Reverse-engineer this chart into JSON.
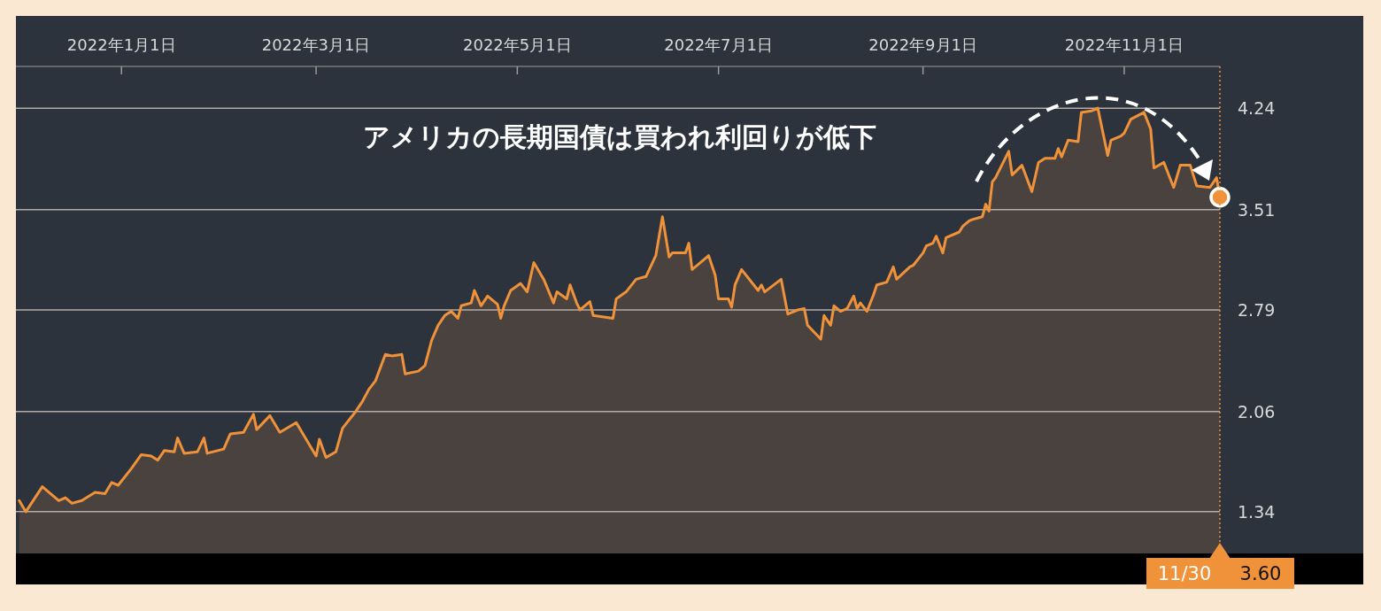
{
  "chart_data": {
    "type": "area",
    "annotations": [
      "アメリカの長期国債は買われ利回りが低下",
      "3.60"
    ],
    "x": [
      "2021-12-01",
      "2021-12-03",
      "2021-12-08",
      "2021-12-13",
      "2021-12-15",
      "2021-12-17",
      "2021-12-20",
      "2021-12-24",
      "2021-12-27",
      "2021-12-29",
      "2021-12-31",
      "2022-01-04",
      "2022-01-07",
      "2022-01-10",
      "2022-01-12",
      "2022-01-14",
      "2022-01-17",
      "2022-01-18",
      "2022-01-20",
      "2022-01-24",
      "2022-01-26",
      "2022-01-27",
      "2022-02-01",
      "2022-02-03",
      "2022-02-07",
      "2022-02-10",
      "2022-02-11",
      "2022-02-15",
      "2022-02-18",
      "2022-02-23",
      "2022-02-25",
      "2022-03-01",
      "2022-03-02",
      "2022-03-04",
      "2022-03-07",
      "2022-03-09",
      "2022-03-13",
      "2022-03-15",
      "2022-03-17",
      "2022-03-19",
      "2022-03-22",
      "2022-03-24",
      "2022-03-27",
      "2022-03-28",
      "2022-04-01",
      "2022-04-03",
      "2022-04-05",
      "2022-04-07",
      "2022-04-09",
      "2022-04-11",
      "2022-04-13",
      "2022-04-14",
      "2022-04-17",
      "2022-04-18",
      "2022-04-20",
      "2022-04-22",
      "2022-04-25",
      "2022-04-26",
      "2022-04-27",
      "2022-04-29",
      "2022-05-02",
      "2022-05-04",
      "2022-05-06",
      "2022-05-09",
      "2022-05-12",
      "2022-05-13",
      "2022-05-16",
      "2022-05-17",
      "2022-05-19",
      "2022-05-20",
      "2022-05-23",
      "2022-05-24",
      "2022-05-30",
      "2022-05-31",
      "2022-06-03",
      "2022-06-06",
      "2022-06-09",
      "2022-06-12",
      "2022-06-14",
      "2022-06-16",
      "2022-06-17",
      "2022-06-21",
      "2022-06-22",
      "2022-06-23",
      "2022-06-25",
      "2022-06-28",
      "2022-06-30",
      "2022-07-01",
      "2022-07-04",
      "2022-07-05",
      "2022-07-06",
      "2022-07-08",
      "2022-07-13",
      "2022-07-14",
      "2022-07-15",
      "2022-07-20",
      "2022-07-22",
      "2022-07-25",
      "2022-07-27",
      "2022-07-28",
      "2022-08-01",
      "2022-08-02",
      "2022-08-04",
      "2022-08-05",
      "2022-08-07",
      "2022-08-09",
      "2022-08-11",
      "2022-08-12",
      "2022-08-13",
      "2022-08-15",
      "2022-08-17",
      "2022-08-18",
      "2022-08-21",
      "2022-08-23",
      "2022-08-24",
      "2022-08-28",
      "2022-08-29",
      "2022-09-01",
      "2022-09-02",
      "2022-09-04",
      "2022-09-05",
      "2022-09-07",
      "2022-09-08",
      "2022-09-12",
      "2022-09-13",
      "2022-09-15",
      "2022-09-16",
      "2022-09-19",
      "2022-09-20",
      "2022-09-21",
      "2022-09-22",
      "2022-09-23",
      "2022-09-27",
      "2022-09-28",
      "2022-10-01",
      "2022-10-04",
      "2022-10-06",
      "2022-10-08",
      "2022-10-11",
      "2022-10-12",
      "2022-10-13",
      "2022-10-15",
      "2022-10-18",
      "2022-10-19",
      "2022-10-22",
      "2022-10-24",
      "2022-10-27",
      "2022-10-28",
      "2022-10-31",
      "2022-11-01",
      "2022-11-03",
      "2022-11-07",
      "2022-11-09",
      "2022-11-10",
      "2022-11-13",
      "2022-11-16",
      "2022-11-18",
      "2022-11-21",
      "2022-11-23",
      "2022-11-27",
      "2022-11-29",
      "2022-11-30"
    ],
    "series": [
      {
        "color": "#f0923a",
        "values": [
          1.42,
          1.34,
          1.52,
          1.42,
          1.44,
          1.4,
          1.42,
          1.48,
          1.47,
          1.55,
          1.53,
          1.65,
          1.75,
          1.74,
          1.71,
          1.78,
          1.77,
          1.87,
          1.76,
          1.77,
          1.87,
          1.76,
          1.79,
          1.9,
          1.91,
          2.04,
          1.93,
          2.03,
          1.91,
          1.98,
          1.9,
          1.74,
          1.86,
          1.73,
          1.77,
          1.94,
          2.06,
          2.13,
          2.22,
          2.28,
          2.47,
          2.46,
          2.47,
          2.33,
          2.35,
          2.39,
          2.57,
          2.68,
          2.75,
          2.78,
          2.73,
          2.82,
          2.84,
          2.93,
          2.82,
          2.89,
          2.83,
          2.73,
          2.82,
          2.93,
          2.98,
          2.92,
          3.13,
          3.01,
          2.84,
          2.92,
          2.87,
          2.97,
          2.84,
          2.79,
          2.85,
          2.75,
          2.73,
          2.87,
          2.92,
          3.01,
          3.03,
          3.18,
          3.46,
          3.17,
          3.2,
          3.2,
          3.27,
          3.08,
          3.12,
          3.18,
          3.04,
          2.87,
          2.87,
          2.81,
          2.97,
          3.08,
          2.93,
          2.97,
          2.92,
          3.01,
          2.76,
          2.79,
          2.8,
          2.68,
          2.58,
          2.75,
          2.68,
          2.82,
          2.78,
          2.8,
          2.89,
          2.8,
          2.84,
          2.78,
          2.9,
          2.97,
          2.99,
          3.1,
          3.01,
          3.1,
          3.11,
          3.2,
          3.25,
          3.27,
          3.32,
          3.2,
          3.31,
          3.35,
          3.39,
          3.43,
          3.44,
          3.46,
          3.55,
          3.5,
          3.71,
          3.74,
          3.93,
          3.76,
          3.83,
          3.64,
          3.85,
          3.88,
          3.88,
          3.95,
          3.89,
          4.01,
          4.0,
          4.21,
          4.22,
          4.24,
          3.9,
          4.01,
          4.04,
          4.06,
          4.16,
          4.21,
          4.09,
          3.81,
          3.85,
          3.67,
          3.83,
          3.83,
          3.68,
          3.67,
          3.74,
          3.6
        ]
      }
    ],
    "xlim": [
      "2021-11-30",
      "2022-11-30"
    ],
    "xticks": [
      {
        "value": "2022-01-01",
        "label": "2022年1月1日"
      },
      {
        "value": "2022-03-01",
        "label": "2022年3月1日"
      },
      {
        "value": "2022-05-01",
        "label": "2022年5月1日"
      },
      {
        "value": "2022-07-01",
        "label": "2022年7月1日"
      },
      {
        "value": "2022-09-01",
        "label": "2022年9月1日"
      },
      {
        "value": "2022-11-01",
        "label": "2022年11月1日"
      }
    ],
    "ylim": [
      1.04,
      4.54
    ],
    "yticks": [
      1.34,
      2.06,
      2.79,
      3.51,
      4.24
    ],
    "grid": "y",
    "ref_lines": [
      {
        "axis": "x",
        "value": "2022-11-30",
        "label": "11/30",
        "color": "#f0923a",
        "line_style": "dotted"
      }
    ]
  }
}
